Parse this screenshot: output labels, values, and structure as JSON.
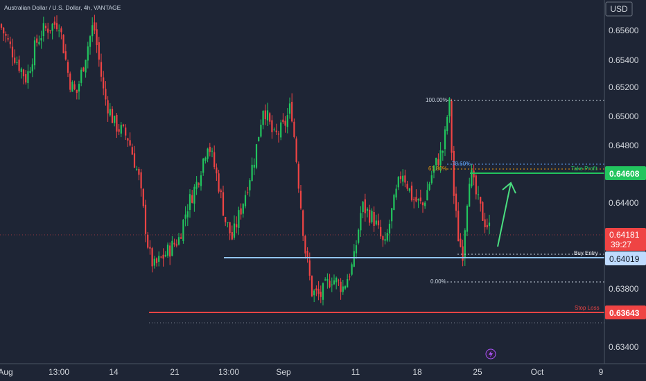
{
  "header": {
    "symbol_title": "Australian Dollar / U.S. Dollar, 4h, VANTAGE",
    "currency": "USD"
  },
  "colors": {
    "bg": "#1e2535",
    "bull": "#22c55e",
    "bear": "#ef4444",
    "buy_line": "#93c5fd",
    "stop_line": "#ef4444",
    "tp_line": "#22c55e",
    "fib_top": "#cbd5e1",
    "fib_786": "#60a5fa",
    "fib_618": "#f59e0b",
    "arrow": "#4ade80",
    "lightning": "#a855f7"
  },
  "levels": {
    "take_profit": {
      "label": "Take Profit",
      "price": "0.64608"
    },
    "buy_entry": {
      "label": "Buy Entry",
      "price": "0.64019"
    },
    "stop_loss": {
      "label": "Stop Loss",
      "price": "0.63643"
    },
    "current": {
      "price": "0.64181",
      "countdown": "39:27"
    }
  },
  "fib_labels": {
    "top": "100.00%",
    "l786": "78.60%",
    "l618": "61.80%",
    "bottom": "0.00%"
  },
  "chart_data": {
    "type": "candlestick",
    "symbol": "Australian Dollar / U.S. Dollar, 4h, VANTAGE",
    "y_axis_ticks": [
      "0.65600",
      "0.65400",
      "0.65200",
      "0.65000",
      "0.64800",
      "0.64400",
      "0.63800",
      "0.63400"
    ],
    "x_axis_ticks": [
      "Aug",
      "13:00",
      "14",
      "21",
      "13:00",
      "Sep",
      "11",
      "18",
      "25",
      "Oct",
      "9"
    ],
    "ylim": [
      0.6325,
      0.6578
    ],
    "series_path": [
      [
        0,
        0.6561
      ],
      [
        15,
        0.6545
      ],
      [
        25,
        0.6535
      ],
      [
        38,
        0.6523
      ],
      [
        52,
        0.6548
      ],
      [
        63,
        0.6557
      ],
      [
        85,
        0.6563
      ],
      [
        100,
        0.6522
      ],
      [
        110,
        0.6512
      ],
      [
        125,
        0.6543
      ],
      [
        135,
        0.6562
      ],
      [
        150,
        0.6512
      ],
      [
        165,
        0.6492
      ],
      [
        185,
        0.6482
      ],
      [
        200,
        0.6455
      ],
      [
        215,
        0.6402
      ],
      [
        222,
        0.6392
      ],
      [
        240,
        0.6402
      ],
      [
        258,
        0.6412
      ],
      [
        270,
        0.6434
      ],
      [
        285,
        0.6452
      ],
      [
        300,
        0.648
      ],
      [
        315,
        0.6451
      ],
      [
        325,
        0.6425
      ],
      [
        335,
        0.6412
      ],
      [
        352,
        0.644
      ],
      [
        368,
        0.647
      ],
      [
        380,
        0.6505
      ],
      [
        395,
        0.6482
      ],
      [
        410,
        0.649
      ],
      [
        420,
        0.6505
      ],
      [
        430,
        0.6455
      ],
      [
        440,
        0.6405
      ],
      [
        450,
        0.6375
      ],
      [
        462,
        0.6372
      ],
      [
        478,
        0.6385
      ],
      [
        495,
        0.6378
      ],
      [
        510,
        0.6395
      ],
      [
        522,
        0.6435
      ],
      [
        540,
        0.6425
      ],
      [
        555,
        0.6405
      ],
      [
        565,
        0.643
      ],
      [
        580,
        0.646
      ],
      [
        595,
        0.644
      ],
      [
        610,
        0.6435
      ],
      [
        625,
        0.646
      ],
      [
        640,
        0.6475
      ],
      [
        648,
        0.6509
      ],
      [
        655,
        0.644
      ],
      [
        662,
        0.641
      ],
      [
        668,
        0.6402
      ],
      [
        672,
        0.643
      ],
      [
        678,
        0.646
      ],
      [
        688,
        0.644
      ],
      [
        698,
        0.6425
      ],
      [
        708,
        0.6418
      ]
    ],
    "levels": [
      {
        "name": "Take Profit",
        "value": 0.64608
      },
      {
        "name": "Buy Entry",
        "value": 0.64019
      },
      {
        "name": "Stop Loss",
        "value": 0.63643
      }
    ],
    "fibonacci": [
      {
        "label": "100.00%",
        "value": 0.651
      },
      {
        "label": "78.60%",
        "value": 0.6466
      },
      {
        "label": "61.80%",
        "value": 0.6462
      },
      {
        "label": "0.00%",
        "value": 0.6386
      }
    ]
  }
}
